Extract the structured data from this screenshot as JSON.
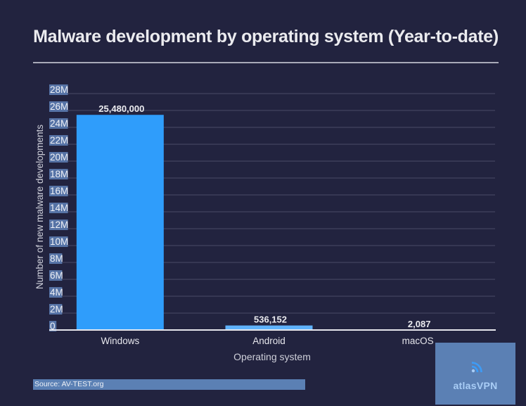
{
  "chart_data": {
    "type": "bar",
    "title": "Malware development by operating system (Year-to-date)",
    "xlabel": "Operating system",
    "ylabel": "Number of new malware developments",
    "categories": [
      "Windows",
      "Android",
      "macOS"
    ],
    "values": [
      25480000,
      536152,
      2087
    ],
    "data_labels": [
      "25,480,000",
      "536,152",
      "2,087"
    ],
    "ylim": [
      0,
      28000000
    ],
    "yticks": [
      0,
      2000000,
      4000000,
      6000000,
      8000000,
      10000000,
      12000000,
      14000000,
      16000000,
      18000000,
      20000000,
      22000000,
      24000000,
      26000000,
      28000000
    ],
    "ytick_labels": [
      "0",
      "2M",
      "4M",
      "6M",
      "8M",
      "10M",
      "12M",
      "14M",
      "16M",
      "18M",
      "20M",
      "22M",
      "24M",
      "26M",
      "28M"
    ],
    "grid": true,
    "legend": "none",
    "colors": {
      "Windows": "#2f9dfb",
      "Android": "#5fb2fb",
      "macOS": "#5fb2fb"
    }
  },
  "footer": {
    "source": "Source: AV-TEST.org",
    "brand": "atlasVPN"
  }
}
